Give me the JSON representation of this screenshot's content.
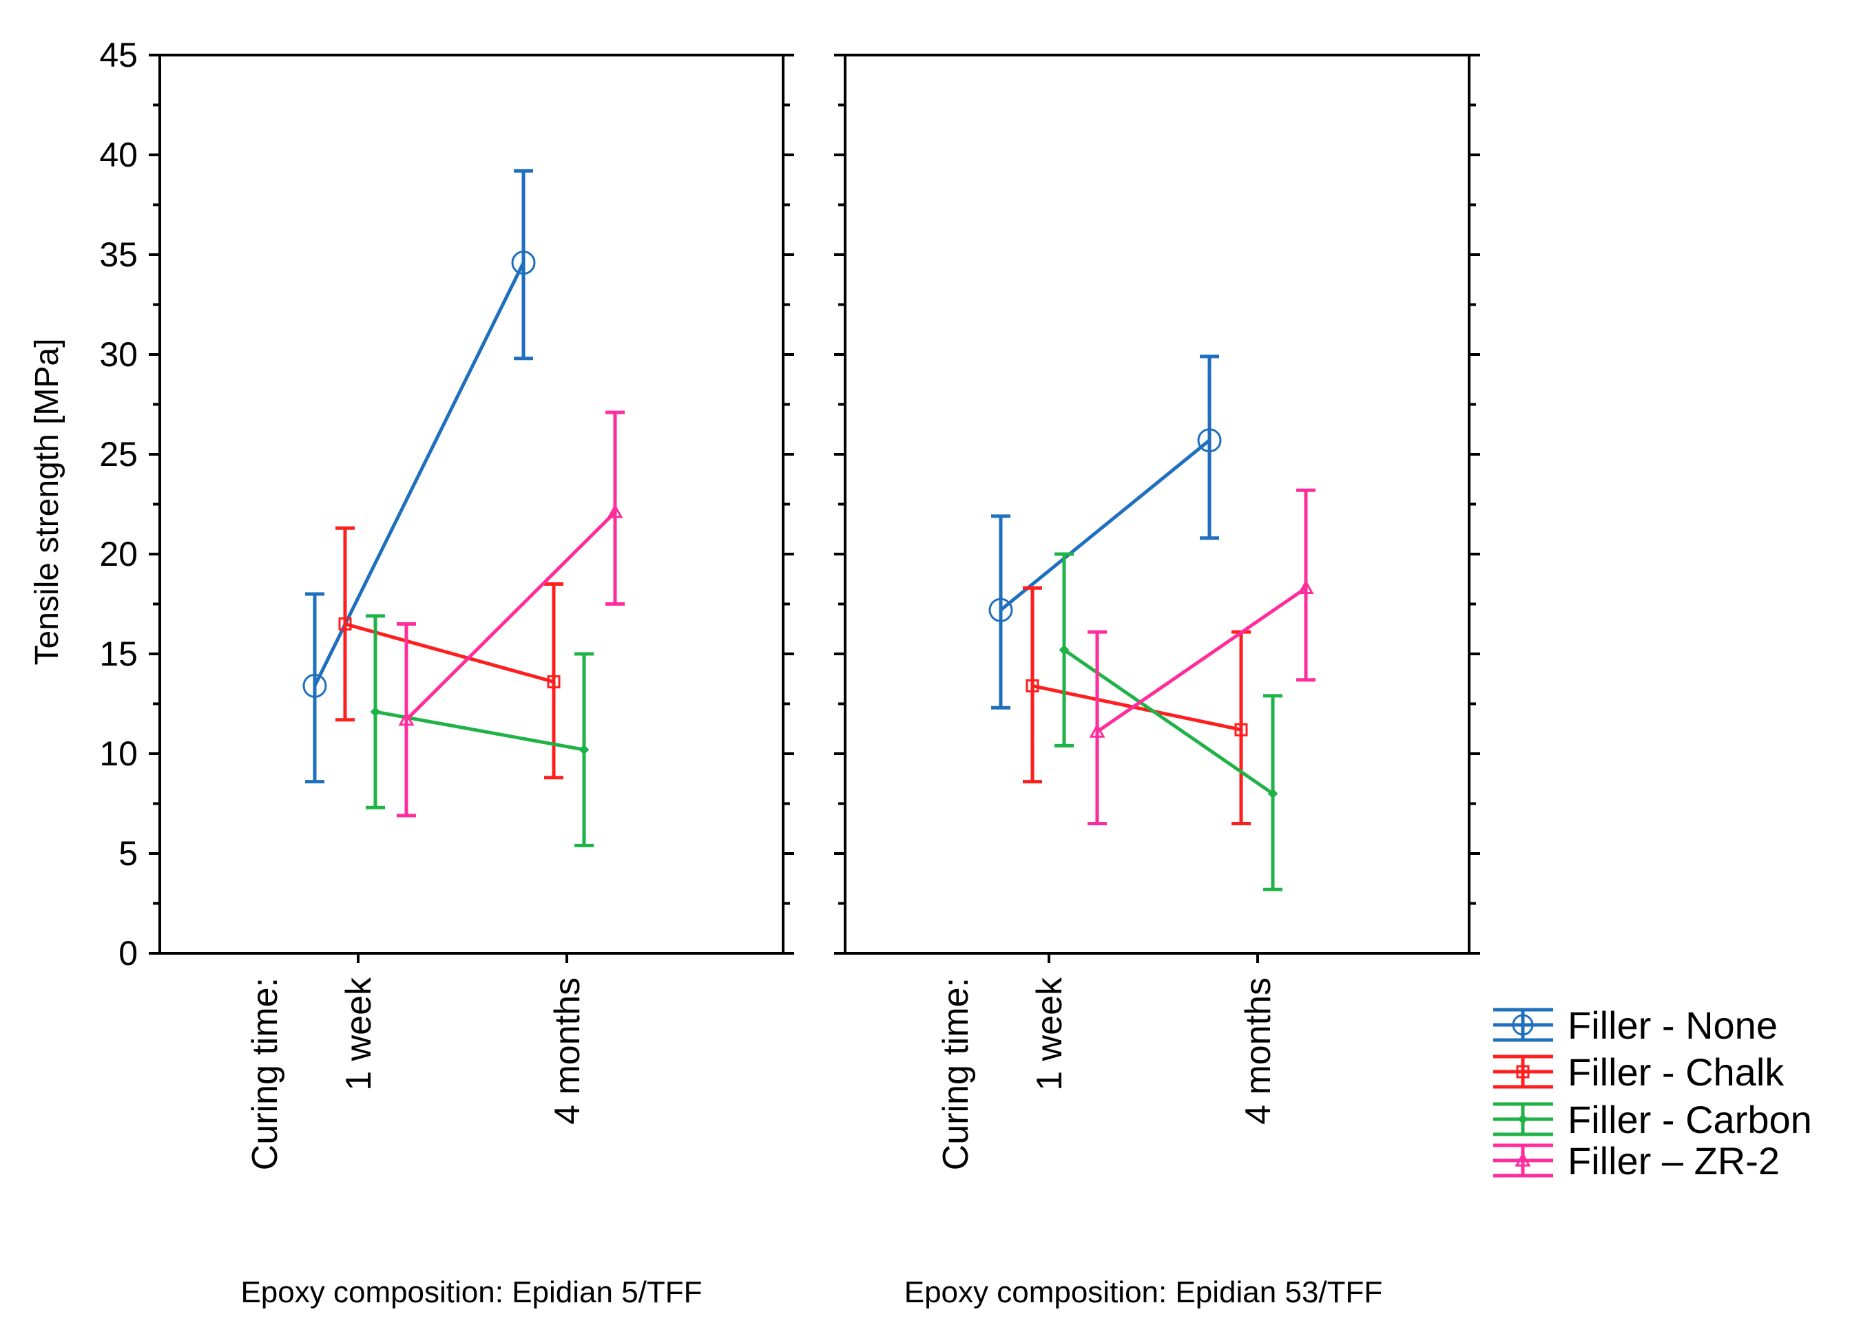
{
  "chart_data": {
    "type": "line",
    "ylabel": "Tensile strength [MPa]",
    "ylim": [
      0,
      45
    ],
    "yticks": [
      "0",
      "5",
      "10",
      "15",
      "20",
      "25",
      "30",
      "35",
      "40",
      "45"
    ],
    "curing_label": "Curing time:",
    "categories": [
      "1 week",
      "4 months"
    ],
    "colors": {
      "none": "#1f6fbf",
      "chalk": "#ff1e1e",
      "carbon": "#1fb347",
      "zr2": "#ff2d9b",
      "axis": "#000000"
    },
    "series": [
      {
        "key": "none",
        "name": "Filler - None",
        "marker": "circle"
      },
      {
        "key": "chalk",
        "name": "Filler - Chalk",
        "marker": "square"
      },
      {
        "key": "carbon",
        "name": "Filler - Carbon",
        "marker": "diamond"
      },
      {
        "key": "zr2",
        "name": "Filler – ZR-2",
        "marker": "triangle"
      }
    ],
    "panels": [
      {
        "title": "Epoxy composition: Epidian 5/TFF",
        "values": {
          "none": [
            {
              "mean": 13.4,
              "low": 8.6,
              "high": 18.0
            },
            {
              "mean": 34.6,
              "low": 29.8,
              "high": 39.2
            }
          ],
          "chalk": [
            {
              "mean": 16.5,
              "low": 11.7,
              "high": 21.3
            },
            {
              "mean": 13.6,
              "low": 8.8,
              "high": 18.5
            }
          ],
          "carbon": [
            {
              "mean": 12.1,
              "low": 7.3,
              "high": 16.9
            },
            {
              "mean": 10.2,
              "low": 5.4,
              "high": 15.0
            }
          ],
          "zr2": [
            {
              "mean": 11.7,
              "low": 6.9,
              "high": 16.5
            },
            {
              "mean": 22.1,
              "low": 17.5,
              "high": 27.1
            }
          ]
        }
      },
      {
        "title": "Epoxy composition: Epidian 53/TFF",
        "values": {
          "none": [
            {
              "mean": 17.2,
              "low": 12.3,
              "high": 21.9
            },
            {
              "mean": 25.7,
              "low": 20.8,
              "high": 29.9
            }
          ],
          "chalk": [
            {
              "mean": 13.4,
              "low": 8.6,
              "high": 18.3
            },
            {
              "mean": 11.2,
              "low": 6.5,
              "high": 16.1
            }
          ],
          "carbon": [
            {
              "mean": 15.2,
              "low": 10.4,
              "high": 20.0
            },
            {
              "mean": 8.0,
              "low": 3.2,
              "high": 12.9
            }
          ],
          "zr2": [
            {
              "mean": 11.1,
              "low": 6.5,
              "high": 16.1
            },
            {
              "mean": 18.3,
              "low": 13.7,
              "high": 23.2
            }
          ]
        }
      }
    ]
  }
}
